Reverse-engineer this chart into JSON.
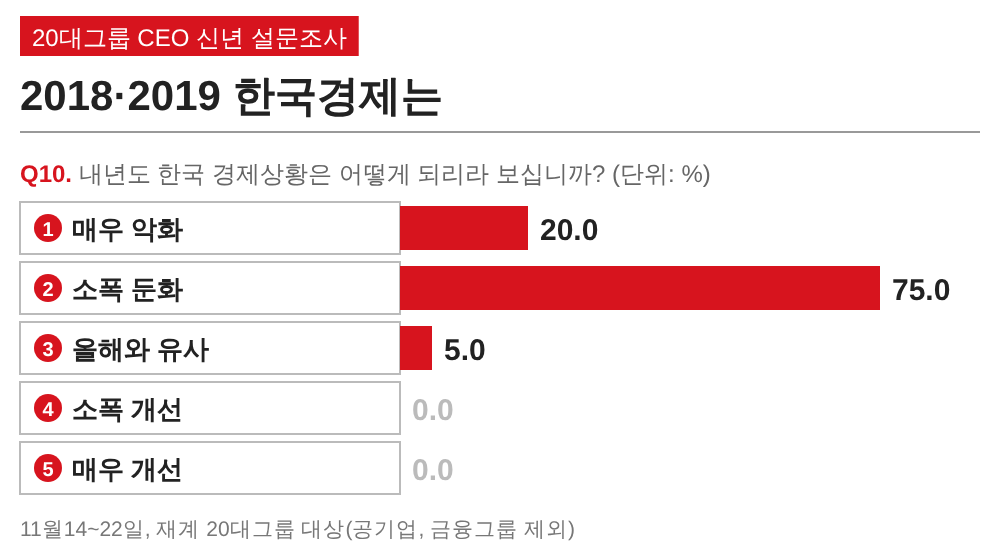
{
  "chart_data": {
    "type": "bar",
    "orientation": "horizontal",
    "title": "2018·2019 한국경제는",
    "subtitle": "**Q10.** 내년도 한국 경제상황은 어떻게 되리라 보십니까? (단위: %)",
    "annotations": [
      "20대그룹 CEO 신년 설문조사",
      "11월14~22일, 재계 20대그룹 대상(공기업, 금융그룹 제외)"
    ],
    "categories": [
      "1 매우 악화",
      "2 소폭 둔화",
      "3 올해와 유사",
      "4 소폭 개선",
      "5 매우 개선"
    ],
    "values": [
      20,
      75,
      5,
      0,
      0
    ],
    "value_labels": [
      "20.0",
      "75.0",
      "5.0",
      "0.0",
      "0.0"
    ],
    "color": "#d7141e"
  }
}
